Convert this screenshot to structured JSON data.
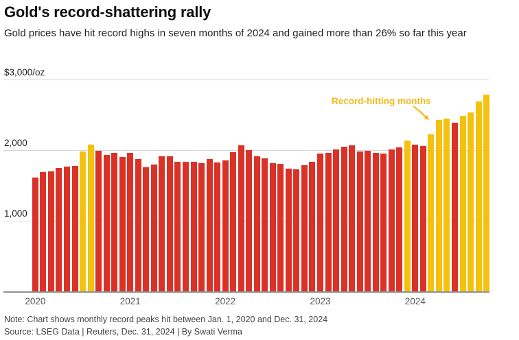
{
  "header": {
    "title": "Gold's record-shattering rally",
    "subtitle": "Gold prices have hit record highs in seven months of 2024 and gained more than 26% so far this year"
  },
  "chart_data": {
    "type": "bar",
    "title": "Gold's record-shattering rally",
    "ylabel": "$/oz",
    "ylim": [
      0,
      3000
    ],
    "grid": true,
    "yticks": [
      {
        "value": 3000,
        "label": "$3,000/oz"
      },
      {
        "value": 2000,
        "label": "2,000"
      },
      {
        "value": 1000,
        "label": "1,000"
      }
    ],
    "year_labels": [
      "2020",
      "2021",
      "2022",
      "2023",
      "2024"
    ],
    "annotation": {
      "text": "Record-hitting months",
      "color": "#f5ba1a"
    },
    "colors": {
      "regular_month": "#da3227",
      "record_month": "#f4c10e"
    },
    "series": [
      {
        "name": "Monthly record peak ($/oz)",
        "points": [
          {
            "month": "2020-01",
            "value": 1611,
            "record": false
          },
          {
            "month": "2020-02",
            "value": 1689,
            "record": false
          },
          {
            "month": "2020-03",
            "value": 1703,
            "record": false
          },
          {
            "month": "2020-04",
            "value": 1747,
            "record": false
          },
          {
            "month": "2020-05",
            "value": 1765,
            "record": false
          },
          {
            "month": "2020-06",
            "value": 1779,
            "record": false
          },
          {
            "month": "2020-07",
            "value": 1981,
            "record": true
          },
          {
            "month": "2020-08",
            "value": 2075,
            "record": true
          },
          {
            "month": "2020-09",
            "value": 1992,
            "record": false
          },
          {
            "month": "2020-10",
            "value": 1932,
            "record": false
          },
          {
            "month": "2020-11",
            "value": 1965,
            "record": false
          },
          {
            "month": "2020-12",
            "value": 1906,
            "record": false
          },
          {
            "month": "2021-01",
            "value": 1959,
            "record": false
          },
          {
            "month": "2021-02",
            "value": 1871,
            "record": false
          },
          {
            "month": "2021-03",
            "value": 1755,
            "record": false
          },
          {
            "month": "2021-04",
            "value": 1798,
            "record": false
          },
          {
            "month": "2021-05",
            "value": 1912,
            "record": false
          },
          {
            "month": "2021-06",
            "value": 1916,
            "record": false
          },
          {
            "month": "2021-07",
            "value": 1834,
            "record": false
          },
          {
            "month": "2021-08",
            "value": 1831,
            "record": false
          },
          {
            "month": "2021-09",
            "value": 1834,
            "record": false
          },
          {
            "month": "2021-10",
            "value": 1813,
            "record": false
          },
          {
            "month": "2021-11",
            "value": 1877,
            "record": false
          },
          {
            "month": "2021-12",
            "value": 1830,
            "record": false
          },
          {
            "month": "2022-01",
            "value": 1853,
            "record": false
          },
          {
            "month": "2022-02",
            "value": 1974,
            "record": false
          },
          {
            "month": "2022-03",
            "value": 2070,
            "record": false
          },
          {
            "month": "2022-04",
            "value": 1998,
            "record": false
          },
          {
            "month": "2022-05",
            "value": 1910,
            "record": false
          },
          {
            "month": "2022-06",
            "value": 1879,
            "record": false
          },
          {
            "month": "2022-07",
            "value": 1814,
            "record": false
          },
          {
            "month": "2022-08",
            "value": 1808,
            "record": false
          },
          {
            "month": "2022-09",
            "value": 1735,
            "record": false
          },
          {
            "month": "2022-10",
            "value": 1730,
            "record": false
          },
          {
            "month": "2022-11",
            "value": 1786,
            "record": false
          },
          {
            "month": "2022-12",
            "value": 1833,
            "record": false
          },
          {
            "month": "2023-01",
            "value": 1949,
            "record": false
          },
          {
            "month": "2023-02",
            "value": 1960,
            "record": false
          },
          {
            "month": "2023-03",
            "value": 2010,
            "record": false
          },
          {
            "month": "2023-04",
            "value": 2048,
            "record": false
          },
          {
            "month": "2023-05",
            "value": 2067,
            "record": false
          },
          {
            "month": "2023-06",
            "value": 1983,
            "record": false
          },
          {
            "month": "2023-07",
            "value": 1987,
            "record": false
          },
          {
            "month": "2023-08",
            "value": 1957,
            "record": false
          },
          {
            "month": "2023-09",
            "value": 1947,
            "record": false
          },
          {
            "month": "2023-10",
            "value": 2007,
            "record": false
          },
          {
            "month": "2023-11",
            "value": 2041,
            "record": false
          },
          {
            "month": "2023-12",
            "value": 2135,
            "record": true
          },
          {
            "month": "2024-01",
            "value": 2078,
            "record": false
          },
          {
            "month": "2024-02",
            "value": 2062,
            "record": false
          },
          {
            "month": "2024-03",
            "value": 2222,
            "record": true
          },
          {
            "month": "2024-04",
            "value": 2431,
            "record": true
          },
          {
            "month": "2024-05",
            "value": 2450,
            "record": true
          },
          {
            "month": "2024-06",
            "value": 2387,
            "record": false
          },
          {
            "month": "2024-07",
            "value": 2483,
            "record": true
          },
          {
            "month": "2024-08",
            "value": 2531,
            "record": true
          },
          {
            "month": "2024-09",
            "value": 2685,
            "record": true
          },
          {
            "month": "2024-10",
            "value": 2790,
            "record": true
          }
        ]
      }
    ]
  },
  "footer": {
    "note": "Note: Chart shows monthly record peaks hit between Jan. 1, 2020 and Dec. 31, 2024",
    "source": "Source: LSEG Data | Reuters, Dec. 31, 2024 | By Swati Verma"
  }
}
